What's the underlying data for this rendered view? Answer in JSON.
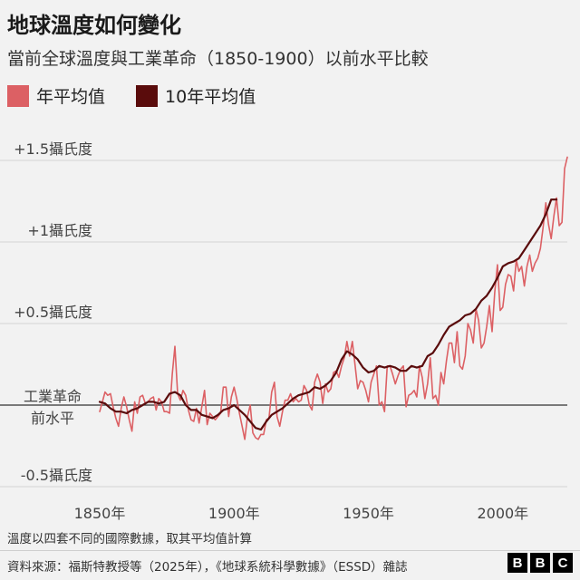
{
  "header": {
    "title": "地球溫度如何變化",
    "subtitle": "當前全球溫度與工業革命（1850-1900）以前水平比較"
  },
  "footer": {
    "note": "溫度以四套不同的國際數據，取其平均值計算",
    "source": "資料來源：福斯特教授等（2025年），《地球系統科學數據》（ESSD）雜誌",
    "logo_letters": [
      "B",
      "B",
      "C"
    ]
  },
  "colors": {
    "annual": "#dc6064",
    "decadal": "#5a0c0c",
    "baseline": "#333333",
    "grid": "#d4d4d4"
  },
  "chart_data": {
    "type": "line",
    "title": "地球溫度如何變化",
    "subtitle": "當前全球溫度與工業革命（1850-1900）以前水平比較",
    "xlabel": "",
    "ylabel": "",
    "xlim": [
      1850,
      2024
    ],
    "ylim": [
      -0.5,
      1.55
    ],
    "y_ticks": [
      {
        "value": -0.5,
        "label": "-0.5攝氏度"
      },
      {
        "value": 0.5,
        "label": "+0.5攝氏度"
      },
      {
        "value": 1.0,
        "label": "+1攝氏度"
      },
      {
        "value": 1.5,
        "label": "+1.5攝氏度"
      }
    ],
    "x_ticks": [
      {
        "value": 1850,
        "label": "1850年"
      },
      {
        "value": 1900,
        "label": "1900年"
      },
      {
        "value": 1950,
        "label": "1950年"
      },
      {
        "value": 2000,
        "label": "2000年"
      }
    ],
    "baseline": {
      "value": 0,
      "label_lines": [
        "工業革命",
        "前水平"
      ]
    },
    "grid": true,
    "legend_position": "top-left",
    "series": [
      {
        "name": "年平均值",
        "x": [
          1850,
          1851,
          1852,
          1853,
          1854,
          1855,
          1856,
          1857,
          1858,
          1859,
          1860,
          1861,
          1862,
          1863,
          1864,
          1865,
          1866,
          1867,
          1868,
          1869,
          1870,
          1871,
          1872,
          1873,
          1874,
          1875,
          1876,
          1877,
          1878,
          1879,
          1880,
          1881,
          1882,
          1883,
          1884,
          1885,
          1886,
          1887,
          1888,
          1889,
          1890,
          1891,
          1892,
          1893,
          1894,
          1895,
          1896,
          1897,
          1898,
          1899,
          1900,
          1901,
          1902,
          1903,
          1904,
          1905,
          1906,
          1907,
          1908,
          1909,
          1910,
          1911,
          1912,
          1913,
          1914,
          1915,
          1916,
          1917,
          1918,
          1919,
          1920,
          1921,
          1922,
          1923,
          1924,
          1925,
          1926,
          1927,
          1928,
          1929,
          1930,
          1931,
          1932,
          1933,
          1934,
          1935,
          1936,
          1937,
          1938,
          1939,
          1940,
          1941,
          1942,
          1943,
          1944,
          1945,
          1946,
          1947,
          1948,
          1949,
          1950,
          1951,
          1952,
          1953,
          1954,
          1955,
          1956,
          1957,
          1958,
          1959,
          1960,
          1961,
          1962,
          1963,
          1964,
          1965,
          1966,
          1967,
          1968,
          1969,
          1970,
          1971,
          1972,
          1973,
          1974,
          1975,
          1976,
          1977,
          1978,
          1979,
          1980,
          1981,
          1982,
          1983,
          1984,
          1985,
          1986,
          1987,
          1988,
          1989,
          1990,
          1991,
          1992,
          1993,
          1994,
          1995,
          1996,
          1997,
          1998,
          1999,
          2000,
          2001,
          2002,
          2003,
          2004,
          2005,
          2006,
          2007,
          2008,
          2009,
          2010,
          2011,
          2012,
          2013,
          2014,
          2015,
          2016,
          2017,
          2018,
          2019,
          2020,
          2021,
          2022,
          2023,
          2024
        ],
        "values": [
          -0.04,
          0.02,
          0.08,
          0.06,
          0.07,
          -0.01,
          -0.08,
          -0.13,
          -0.02,
          0.05,
          -0.01,
          -0.09,
          -0.16,
          0.02,
          -0.05,
          0.05,
          0.06,
          0.01,
          0.02,
          0.04,
          0.05,
          -0.03,
          0.04,
          0.02,
          -0.04,
          -0.04,
          -0.05,
          0.19,
          0.36,
          0.07,
          0.03,
          0.09,
          0.06,
          -0.03,
          -0.09,
          -0.1,
          -0.02,
          -0.11,
          -0.01,
          0.09,
          -0.12,
          -0.05,
          -0.07,
          -0.09,
          -0.07,
          -0.05,
          0.11,
          0.11,
          -0.07,
          0.05,
          0.11,
          0.04,
          -0.05,
          -0.13,
          -0.21,
          -0.07,
          0.0,
          -0.17,
          -0.2,
          -0.21,
          -0.18,
          -0.18,
          -0.09,
          -0.08,
          0.08,
          0.14,
          -0.07,
          -0.13,
          -0.04,
          0.03,
          0.03,
          0.07,
          0.02,
          0.04,
          0.02,
          0.03,
          0.12,
          0.09,
          0.0,
          -0.03,
          0.14,
          0.19,
          0.14,
          0.01,
          0.13,
          0.08,
          0.1,
          0.2,
          0.21,
          0.17,
          0.24,
          0.29,
          0.39,
          0.3,
          0.39,
          0.25,
          0.1,
          0.15,
          0.14,
          0.09,
          0.02,
          0.14,
          0.19,
          0.24,
          0.0,
          0.02,
          -0.04,
          0.24,
          0.24,
          0.19,
          0.13,
          0.18,
          0.22,
          0.24,
          -0.01,
          0.06,
          0.07,
          0.09,
          0.05,
          0.24,
          0.17,
          0.04,
          0.13,
          0.29,
          0.04,
          0.06,
          0.0,
          0.2,
          0.13,
          0.27,
          0.38,
          0.38,
          0.26,
          0.45,
          0.24,
          0.22,
          0.3,
          0.5,
          0.46,
          0.38,
          0.59,
          0.52,
          0.35,
          0.38,
          0.48,
          0.61,
          0.45,
          0.69,
          0.86,
          0.58,
          0.6,
          0.74,
          0.8,
          0.79,
          0.7,
          0.89,
          0.82,
          0.85,
          0.73,
          0.85,
          0.92,
          0.82,
          0.87,
          0.9,
          0.96,
          1.09,
          1.24,
          1.11,
          1.02,
          1.16,
          1.27,
          1.1,
          1.12,
          1.45,
          1.52
        ]
      },
      {
        "name": "10年平均值",
        "x": [
          1850,
          1852,
          1854,
          1856,
          1858,
          1860,
          1862,
          1864,
          1866,
          1868,
          1870,
          1872,
          1874,
          1876,
          1878,
          1880,
          1882,
          1884,
          1886,
          1888,
          1890,
          1892,
          1894,
          1896,
          1898,
          1900,
          1902,
          1904,
          1906,
          1908,
          1910,
          1912,
          1914,
          1916,
          1918,
          1920,
          1922,
          1924,
          1926,
          1928,
          1930,
          1932,
          1934,
          1936,
          1938,
          1940,
          1942,
          1944,
          1946,
          1948,
          1950,
          1952,
          1954,
          1956,
          1958,
          1960,
          1962,
          1964,
          1966,
          1968,
          1970,
          1972,
          1974,
          1976,
          1978,
          1980,
          1982,
          1984,
          1986,
          1988,
          1990,
          1992,
          1994,
          1996,
          1998,
          2000,
          2002,
          2004,
          2006,
          2008,
          2010,
          2012,
          2014,
          2016,
          2018,
          2020
        ],
        "values": [
          0.02,
          0.01,
          -0.02,
          -0.04,
          -0.04,
          -0.05,
          -0.03,
          -0.02,
          0.0,
          0.02,
          0.02,
          0.01,
          0.02,
          0.07,
          0.08,
          0.06,
          0.0,
          -0.03,
          -0.03,
          -0.06,
          -0.07,
          -0.08,
          -0.06,
          -0.03,
          -0.02,
          0.0,
          -0.03,
          -0.06,
          -0.1,
          -0.14,
          -0.15,
          -0.1,
          -0.06,
          -0.04,
          -0.02,
          0.01,
          0.04,
          0.06,
          0.07,
          0.08,
          0.11,
          0.1,
          0.12,
          0.15,
          0.2,
          0.28,
          0.33,
          0.31,
          0.28,
          0.23,
          0.2,
          0.21,
          0.24,
          0.23,
          0.24,
          0.23,
          0.21,
          0.21,
          0.24,
          0.23,
          0.24,
          0.3,
          0.32,
          0.37,
          0.43,
          0.48,
          0.5,
          0.52,
          0.55,
          0.56,
          0.59,
          0.64,
          0.67,
          0.72,
          0.78,
          0.85,
          0.87,
          0.88,
          0.9,
          0.95,
          1.0,
          1.05,
          1.1,
          1.17,
          1.26,
          1.26
        ]
      }
    ]
  }
}
